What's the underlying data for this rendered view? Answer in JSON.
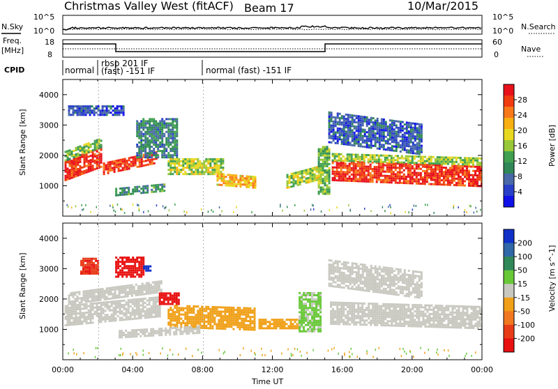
{
  "header": {
    "station": "Christmas Valley West (fitACF)",
    "beam": "Beam 17",
    "date": "10/Mar/2015"
  },
  "top_panel": {
    "left_label": "N.Sky",
    "right_label": "N.Search",
    "left_ticks": [
      "10^5",
      "10^0"
    ],
    "right_ticks": [
      "10^5",
      "10^0"
    ]
  },
  "freq_panel": {
    "left_label_1": "Freq.",
    "left_label_2": "[MHz]",
    "right_label": "Nave",
    "left_ticks": [
      "18",
      "8"
    ],
    "right_ticks": [
      "60",
      "0"
    ]
  },
  "cpid": {
    "label": "CPID",
    "segments": [
      "normal",
      "rbsp 201 IF",
      "(fast) -151 IF",
      "normal (fast) -151 IF"
    ]
  },
  "x_axis": {
    "label": "Time UT",
    "ticks": [
      "00:00",
      "04:00",
      "08:00",
      "12:00",
      "16:00",
      "20:00",
      "00:00"
    ]
  },
  "power_colorbar": {
    "label": "Power [dB]",
    "ticks": [
      "28",
      "24",
      "20",
      "16",
      "12",
      "8",
      "4"
    ],
    "colors": [
      "#e8101a",
      "#f03a10",
      "#f8781a",
      "#f8b010",
      "#e8d820",
      "#98c838",
      "#40a050",
      "#308858",
      "#4868a8",
      "#2840c8",
      "#1010e8"
    ]
  },
  "velocity_colorbar": {
    "label": "Velocity [m s^-1]",
    "ticks": [
      "200",
      "100",
      "50",
      "15",
      "-15",
      "-50",
      "-100",
      "-200"
    ],
    "colors": [
      "#1030c8",
      "#3068a8",
      "#308858",
      "#68c838",
      "#c8c8c0",
      "#f0a018",
      "#f07820",
      "#e83c18",
      "#e81010"
    ]
  },
  "colors": {
    "ground_scatter": "#c8c8c0",
    "trace": "#000000"
  },
  "chart_data": [
    {
      "type": "heatmap",
      "title": "Power",
      "ylabel": "Slant Range [km]",
      "xlabel": "",
      "xlim": [
        0,
        24
      ],
      "ylim": [
        0,
        4500
      ],
      "y_ticks": [
        "1000",
        "2000",
        "3000",
        "4000"
      ],
      "value_range": [
        0,
        30
      ],
      "units": "dB",
      "regions": [
        {
          "t0": 0.1,
          "t1": 2.2,
          "r0": 1150,
          "r1": 1800,
          "v": 27,
          "slope": 450
        },
        {
          "t0": 0.1,
          "t1": 2.2,
          "r0": 1800,
          "r1": 2150,
          "v": 14,
          "slope": 450
        },
        {
          "t0": 2.3,
          "t1": 5.4,
          "r0": 1350,
          "r1": 1750,
          "v": 26,
          "slope": 380
        },
        {
          "t0": 4.2,
          "t1": 6.5,
          "r0": 1900,
          "r1": 3200,
          "v": 9,
          "slope": 0
        },
        {
          "t0": 3.0,
          "t1": 5.8,
          "r0": 650,
          "r1": 900,
          "v": 10,
          "slope": 150
        },
        {
          "t0": 6.0,
          "t1": 9.2,
          "r0": 1350,
          "r1": 1900,
          "v": 16,
          "slope": 0
        },
        {
          "t0": 8.8,
          "t1": 11.0,
          "r0": 1000,
          "r1": 1400,
          "v": 20,
          "slope": -100
        },
        {
          "t0": 12.8,
          "t1": 14.8,
          "r0": 900,
          "r1": 1350,
          "v": 16,
          "slope": 300
        },
        {
          "t0": 14.6,
          "t1": 15.3,
          "r0": 700,
          "r1": 2300,
          "v": 13,
          "slope": 0
        },
        {
          "t0": 15.4,
          "t1": 24.0,
          "r0": 1150,
          "r1": 1800,
          "v": 27,
          "slope": -200
        },
        {
          "t0": 15.4,
          "t1": 24.0,
          "r0": 1800,
          "r1": 2050,
          "v": 15,
          "slope": -150
        },
        {
          "t0": 15.2,
          "t1": 20.5,
          "r0": 2400,
          "r1": 3400,
          "v": 6,
          "slope": -400
        },
        {
          "t0": 0.3,
          "t1": 3.5,
          "r0": 3300,
          "r1": 3600,
          "v": 5,
          "slope": 0
        }
      ]
    },
    {
      "type": "heatmap",
      "title": "Velocity",
      "ylabel": "Slant Range [km]",
      "xlabel": "Time UT",
      "xlim": [
        0,
        24
      ],
      "ylim": [
        0,
        4500
      ],
      "y_ticks": [
        "1000",
        "2000",
        "3000",
        "4000"
      ],
      "value_range": [
        -200,
        200
      ],
      "units": "m s^-1",
      "regions": [
        {
          "t0": 0.1,
          "t1": 5.6,
          "r0": 1100,
          "r1": 1800,
          "v": 0,
          "slope": 300
        },
        {
          "t0": 0.3,
          "t1": 5.6,
          "r0": 1800,
          "r1": 2200,
          "v": 0,
          "slope": 400
        },
        {
          "t0": 1.0,
          "t1": 2.0,
          "r0": 2800,
          "r1": 3300,
          "v": -150,
          "slope": 0
        },
        {
          "t0": 3.0,
          "t1": 4.6,
          "r0": 2700,
          "r1": 3400,
          "v": -180,
          "slope": 0
        },
        {
          "t0": 4.6,
          "t1": 5.0,
          "r0": 2900,
          "r1": 3100,
          "v": 200,
          "slope": 0
        },
        {
          "t0": 5.5,
          "t1": 6.7,
          "r0": 1800,
          "r1": 2200,
          "v": -200,
          "slope": 0
        },
        {
          "t0": 6.0,
          "t1": 11.0,
          "r0": 1050,
          "r1": 1800,
          "v": -50,
          "slope": -100
        },
        {
          "t0": 3.2,
          "t1": 7.8,
          "r0": 700,
          "r1": 950,
          "v": 0,
          "slope": 150
        },
        {
          "t0": 11.2,
          "t1": 13.5,
          "r0": 1000,
          "r1": 1300,
          "v": -40,
          "slope": 0
        },
        {
          "t0": 13.5,
          "t1": 14.8,
          "r0": 900,
          "r1": 2200,
          "v": 30,
          "slope": 0
        },
        {
          "t0": 15.3,
          "t1": 24.0,
          "r0": 1150,
          "r1": 1900,
          "v": 0,
          "slope": -150
        },
        {
          "t0": 15.2,
          "t1": 20.5,
          "r0": 2400,
          "r1": 3300,
          "v": 0,
          "slope": -400
        }
      ]
    }
  ]
}
